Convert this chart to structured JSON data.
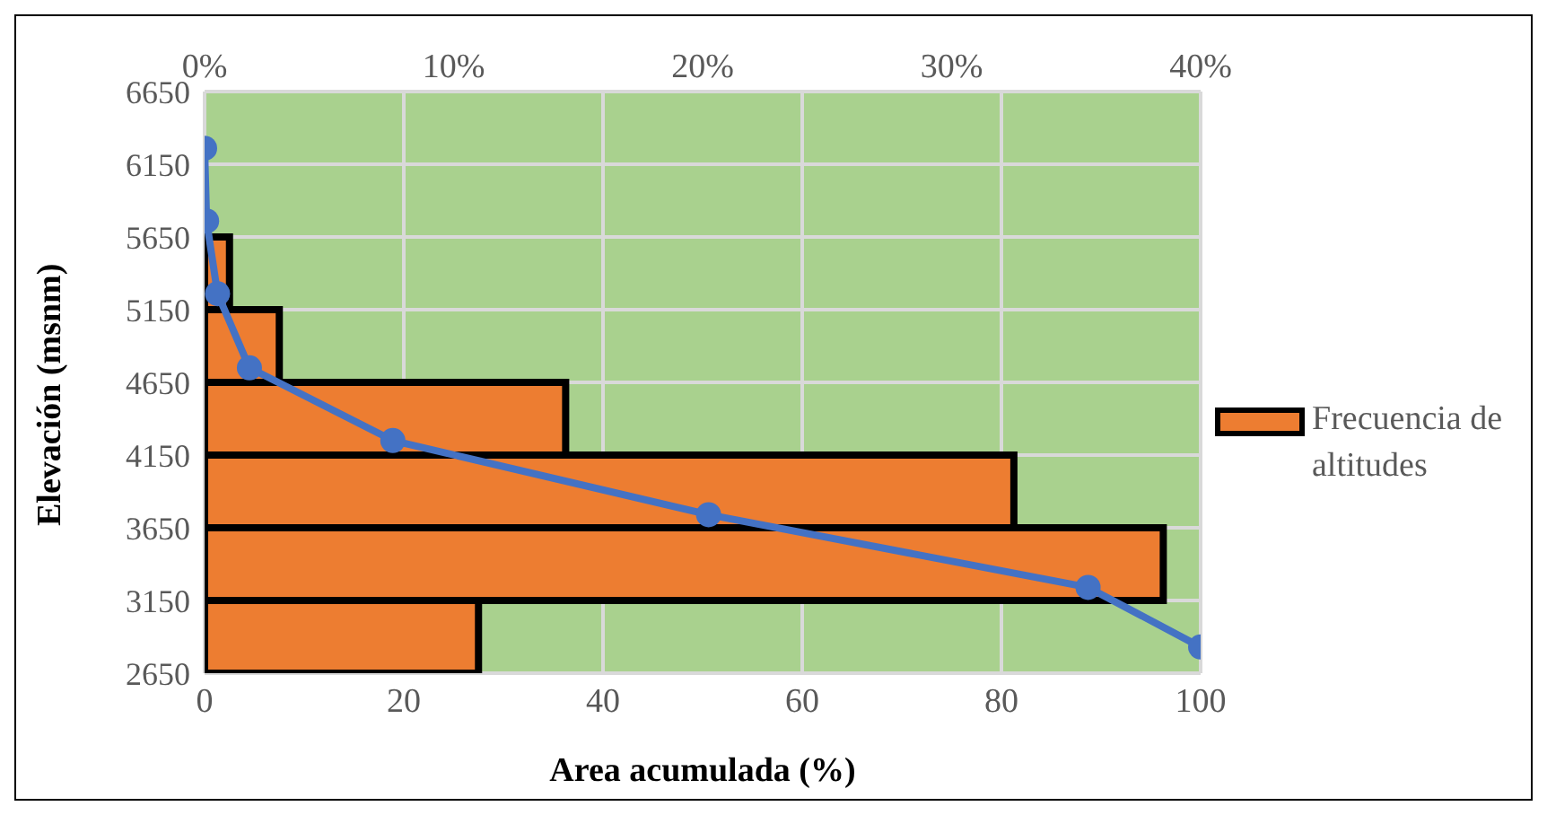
{
  "chart_data": {
    "type": "line",
    "orientation": "horizontal",
    "xlabel": "Area acumulada (%)",
    "ylabel": "Elevación (msnm)",
    "xlim": [
      0,
      100
    ],
    "xticks": [
      0,
      20,
      40,
      60,
      80,
      100
    ],
    "x2lim": [
      0,
      40
    ],
    "x2ticks": [
      {
        "value": 0,
        "label": "0%"
      },
      {
        "value": 10,
        "label": "10%"
      },
      {
        "value": 20,
        "label": "20%"
      },
      {
        "value": 30,
        "label": "30%"
      },
      {
        "value": 40,
        "label": "40%"
      }
    ],
    "ylim": [
      2650,
      6650
    ],
    "yticks": [
      2650,
      3150,
      3650,
      4150,
      4650,
      5150,
      5650,
      6150,
      6650
    ],
    "grid": true,
    "legend": "right",
    "series": [
      {
        "type": "histogram",
        "axis": "x2",
        "name": "Frecuencia de altitudes",
        "color": "#ed7d31",
        "bins": [
          2650,
          3150,
          3650,
          4150,
          4650,
          5150,
          5650,
          6150,
          6650
        ],
        "values": [
          11,
          38.5,
          32.5,
          14.5,
          3,
          1,
          0,
          0
        ]
      },
      {
        "color": "#4472c4",
        "marker": "circle",
        "x": [
          2830,
          3240,
          3740,
          4250,
          4750,
          5260,
          5760,
          6260
        ],
        "values": [
          100,
          88.7,
          50.6,
          18.9,
          4.5,
          1.3,
          0.2,
          0
        ]
      }
    ]
  }
}
